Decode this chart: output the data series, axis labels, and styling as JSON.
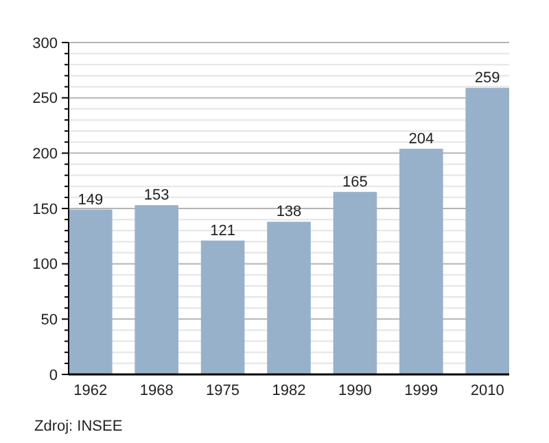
{
  "chart_data": {
    "type": "bar",
    "categories": [
      "1962",
      "1968",
      "1975",
      "1982",
      "1990",
      "1999",
      "2010"
    ],
    "values": [
      149,
      153,
      121,
      138,
      165,
      204,
      259
    ],
    "color": "#98b1cb",
    "data_labels": true,
    "grid": "y",
    "ylim": [
      0,
      300
    ],
    "yticks": [
      0,
      {
        "value": 10,
        "label": null
      },
      {
        "value": 20,
        "label": null
      },
      {
        "value": 30,
        "label": null
      },
      {
        "value": 40,
        "label": null
      },
      50,
      {
        "value": 60,
        "label": null
      },
      {
        "value": 70,
        "label": null
      },
      {
        "value": 80,
        "label": null
      },
      {
        "value": 90,
        "label": null
      },
      100,
      {
        "value": 110,
        "label": null
      },
      {
        "value": 120,
        "label": null
      },
      {
        "value": 130,
        "label": null
      },
      {
        "value": 140,
        "label": null
      },
      150,
      {
        "value": 160,
        "label": null
      },
      {
        "value": 170,
        "label": null
      },
      {
        "value": 180,
        "label": null
      },
      {
        "value": 190,
        "label": null
      },
      200,
      {
        "value": 210,
        "label": null
      },
      {
        "value": 220,
        "label": null
      },
      {
        "value": 230,
        "label": null
      },
      {
        "value": 240,
        "label": null
      },
      250,
      {
        "value": 260,
        "label": null
      },
      {
        "value": 270,
        "label": null
      },
      {
        "value": 280,
        "label": null
      },
      {
        "value": 290,
        "label": null
      },
      300
    ],
    "annotations": [
      "Zdroj: INSEE"
    ]
  }
}
